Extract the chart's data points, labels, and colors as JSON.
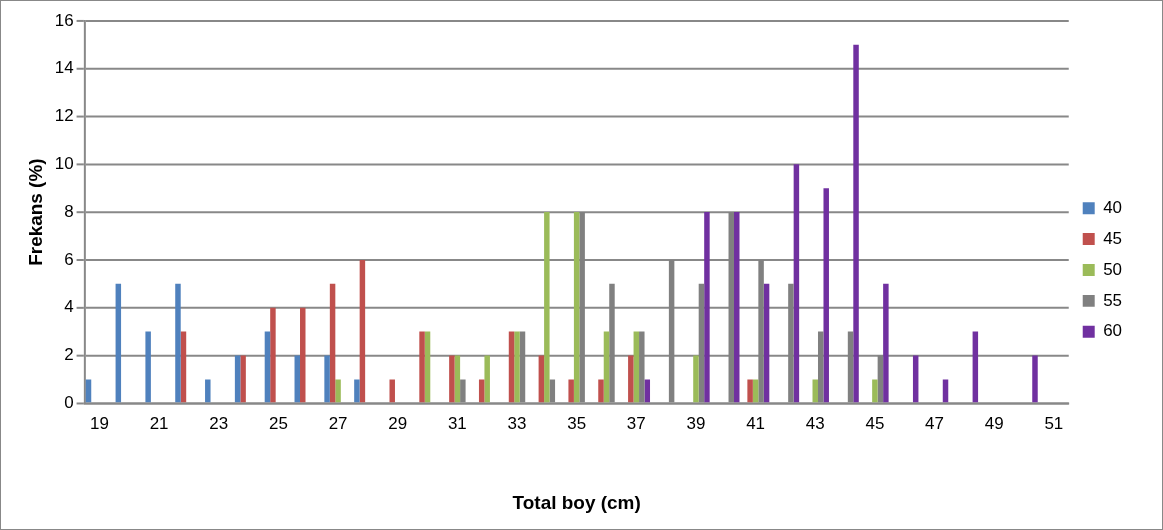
{
  "chart_data": {
    "type": "bar",
    "xlabel": "Total boy (cm)",
    "ylabel": "Frekans (%)",
    "categories": [
      "19",
      null,
      "21",
      null,
      "23",
      null,
      "25",
      null,
      "27",
      null,
      "29",
      null,
      "31",
      null,
      "33",
      null,
      "35",
      null,
      "37",
      null,
      "39",
      null,
      "41",
      null,
      "43",
      null,
      "45",
      null,
      "47",
      null,
      "49",
      null,
      "51"
    ],
    "series": [
      {
        "name": "40",
        "color": "#4f81bd",
        "values": [
          1,
          5,
          3,
          5,
          1,
          2,
          3,
          2,
          2,
          1,
          0,
          0,
          0,
          0,
          0,
          0,
          0,
          0,
          0,
          0,
          0,
          0,
          0,
          0,
          0,
          0,
          0,
          0,
          0,
          0,
          0,
          0,
          0
        ]
      },
      {
        "name": "45",
        "color": "#c0504d",
        "values": [
          0,
          0,
          0,
          3,
          0,
          2,
          4,
          4,
          5,
          6,
          1,
          3,
          2,
          1,
          3,
          2,
          1,
          1,
          2,
          0,
          0,
          0,
          1,
          0,
          0,
          0,
          0,
          0,
          0,
          0,
          0,
          0,
          0
        ]
      },
      {
        "name": "50",
        "color": "#9bbb59",
        "values": [
          0,
          0,
          0,
          0,
          0,
          0,
          0,
          0,
          1,
          0,
          0,
          3,
          2,
          2,
          3,
          8,
          8,
          3,
          3,
          0,
          2,
          0,
          1,
          0,
          1,
          0,
          1,
          0,
          0,
          0,
          0,
          0,
          0
        ]
      },
      {
        "name": "55",
        "color": "#808080",
        "values": [
          0,
          0,
          0,
          0,
          0,
          0,
          0,
          0,
          0,
          0,
          0,
          0,
          1,
          0,
          3,
          1,
          8,
          5,
          3,
          6,
          5,
          8,
          6,
          5,
          3,
          3,
          2,
          0,
          0,
          0,
          0,
          0,
          0
        ]
      },
      {
        "name": "60",
        "color": "#7030a0",
        "values": [
          0,
          0,
          0,
          0,
          0,
          0,
          0,
          0,
          0,
          0,
          0,
          0,
          0,
          0,
          0,
          0,
          0,
          0,
          1,
          0,
          8,
          8,
          5,
          10,
          9,
          15,
          5,
          2,
          1,
          3,
          0,
          2,
          0
        ]
      }
    ],
    "ylim": [
      0,
      16
    ],
    "yticks": [
      0,
      2,
      4,
      6,
      8,
      10,
      12,
      14,
      16
    ],
    "grid": "y",
    "legend": "right"
  }
}
